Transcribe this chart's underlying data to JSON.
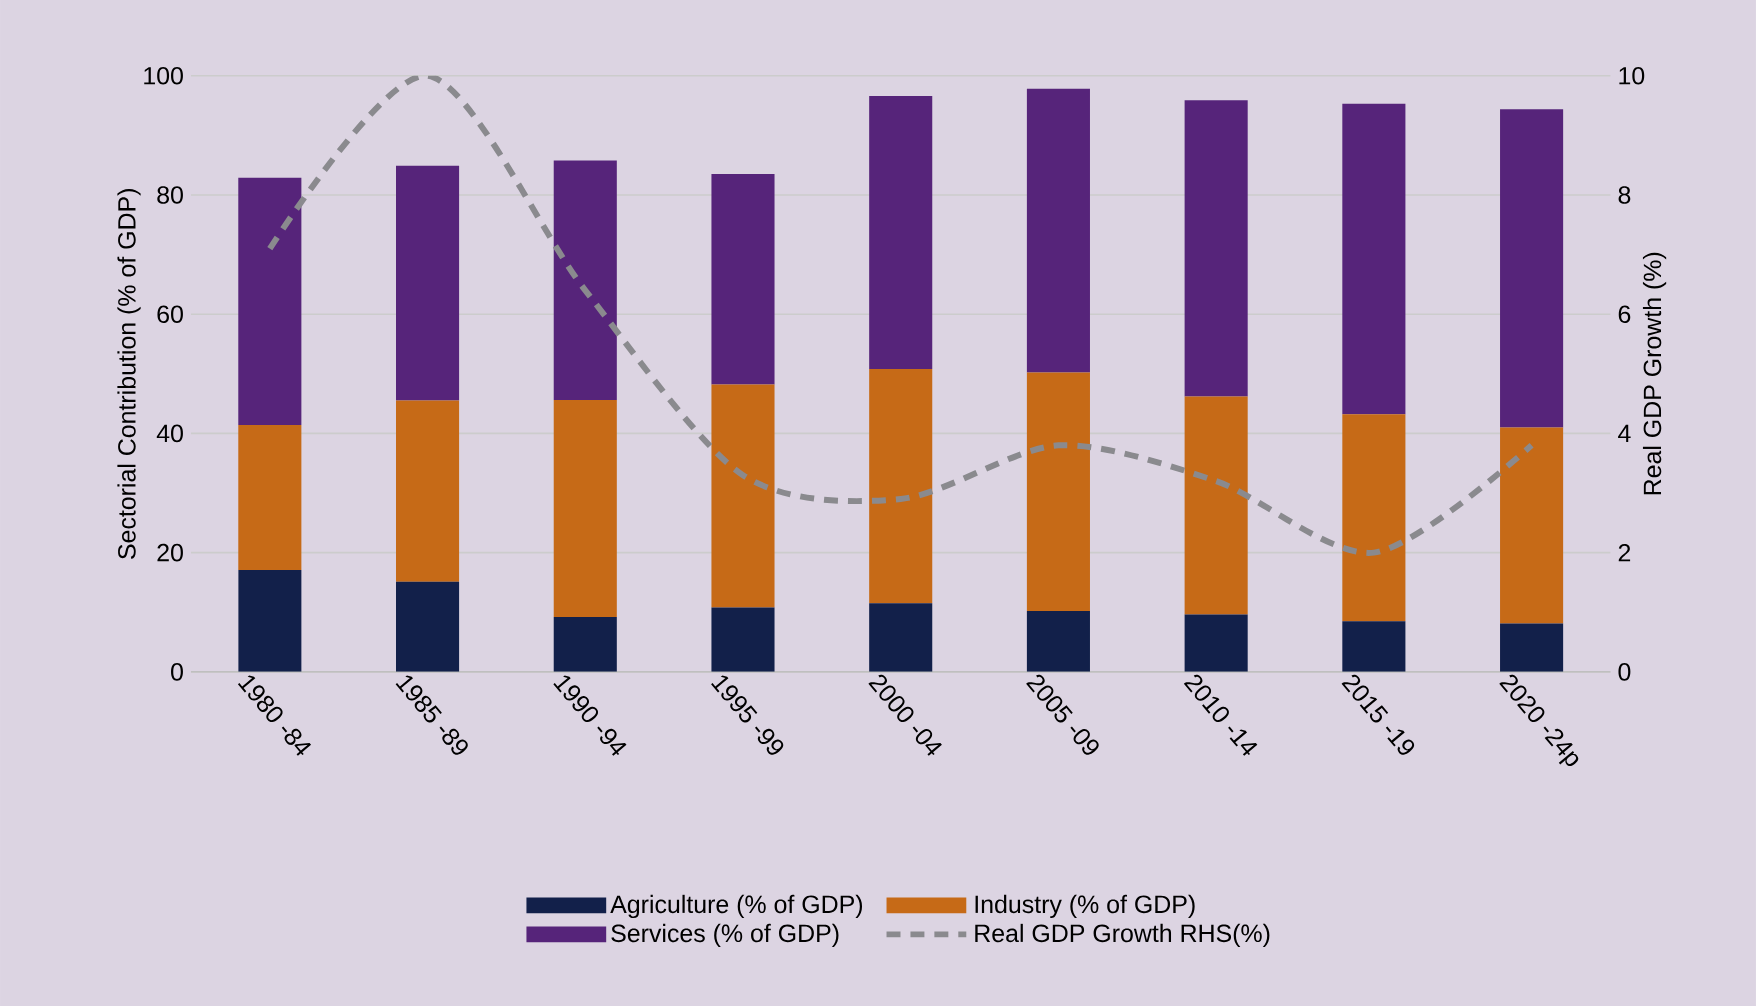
{
  "chart_data": {
    "type": "bar",
    "stacked": true,
    "categories": [
      "1980 -84",
      "1985 -89",
      "1990 -94",
      "1995 -99",
      "2000 -04",
      "2005 -09",
      "2010 -14",
      "2015 -19",
      "2020 -24p"
    ],
    "series": [
      {
        "name": "Agriculture (% of GDP)",
        "color": "#12204a",
        "values": [
          17.1,
          15.1,
          9.2,
          10.8,
          11.5,
          10.2,
          9.6,
          8.5,
          8.1
        ]
      },
      {
        "name": "Industry (% of GDP)",
        "color": "#c66a17",
        "values": [
          24.3,
          30.4,
          36.4,
          37.4,
          39.3,
          40.0,
          36.6,
          34.7,
          32.9
        ]
      },
      {
        "name": "Services (% of GDP)",
        "color": "#56247a",
        "values": [
          41.5,
          39.4,
          40.2,
          35.3,
          45.8,
          47.6,
          49.7,
          52.1,
          53.4
        ]
      },
      {
        "name": "Real GDP Growth RHS(%)",
        "type": "line",
        "axis": "y2",
        "line_style": "dashed",
        "color": "#8a8a8e",
        "values": [
          7.1,
          10.0,
          6.4,
          3.3,
          2.9,
          3.8,
          3.2,
          2.0,
          3.8
        ]
      }
    ],
    "ylabel": "Sectorial  Contribution (% of GDP)",
    "y2label": "Real GDP Growth (%)",
    "ylim": [
      0,
      100
    ],
    "yticks": [
      0,
      20,
      40,
      60,
      80,
      100
    ],
    "y2lim": [
      0,
      10
    ],
    "y2ticks": [
      0,
      2,
      4,
      6,
      8,
      10
    ],
    "grid": "y",
    "legend": "bottom"
  }
}
